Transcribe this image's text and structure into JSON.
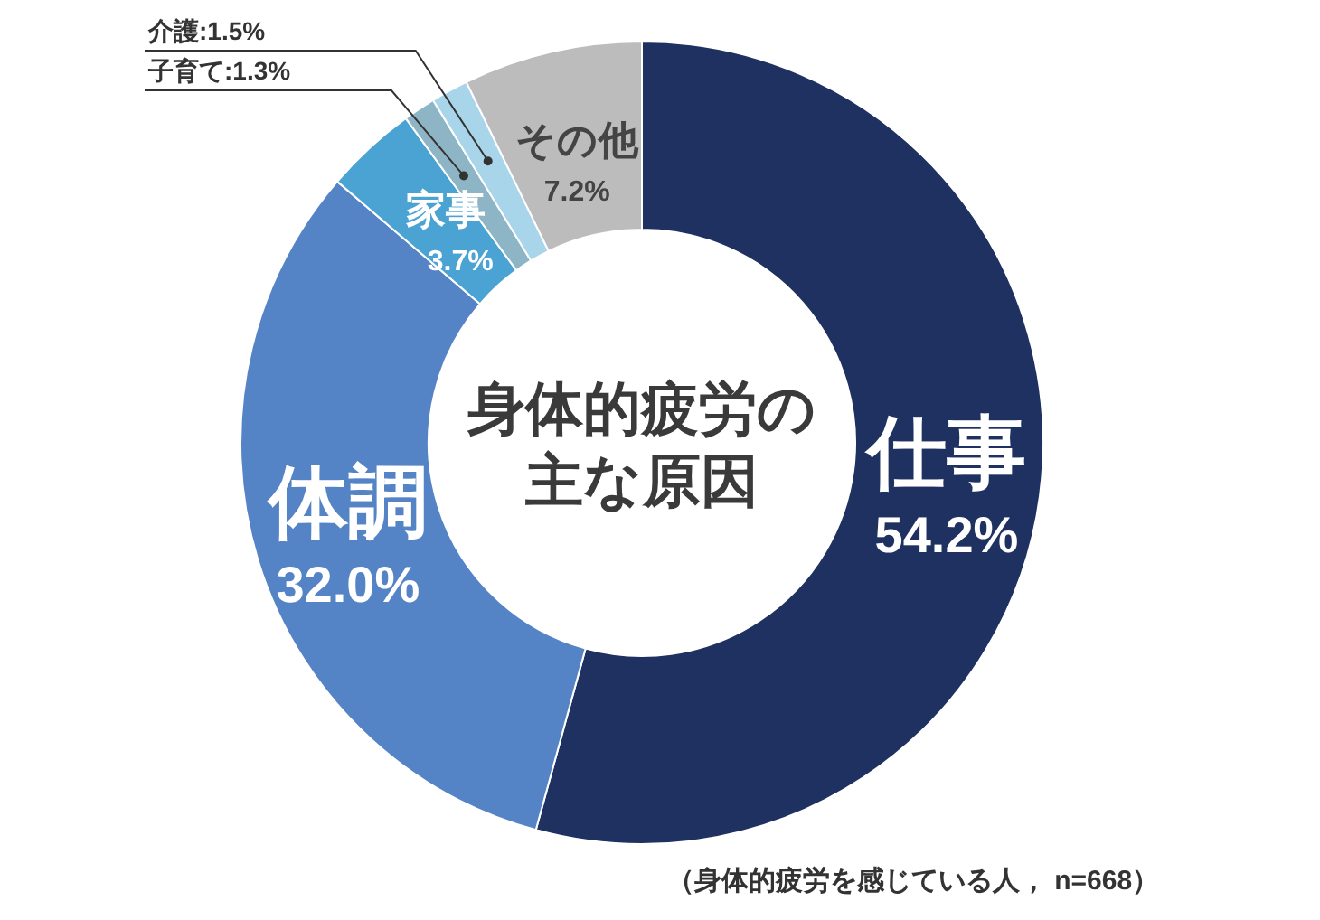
{
  "chart_data": {
    "type": "donut",
    "title": "身体的疲労の主な原因",
    "categories": [
      "仕事",
      "体調",
      "家事",
      "子育て",
      "介護",
      "その他"
    ],
    "values": [
      54.2,
      32.0,
      3.7,
      1.3,
      1.5,
      7.2
    ],
    "value_labels": [
      "54.2%",
      "32.0%",
      "3.7%",
      "1.3%",
      "1.5%",
      "7.2%"
    ],
    "colors": [
      "#1e3160",
      "#5584c6",
      "#4ba3d3",
      "#8db5c6",
      "#a9d5ea",
      "#bcbcbc"
    ],
    "annotations": [
      "（身体的疲労を感じている人， n=668）"
    ]
  }
}
